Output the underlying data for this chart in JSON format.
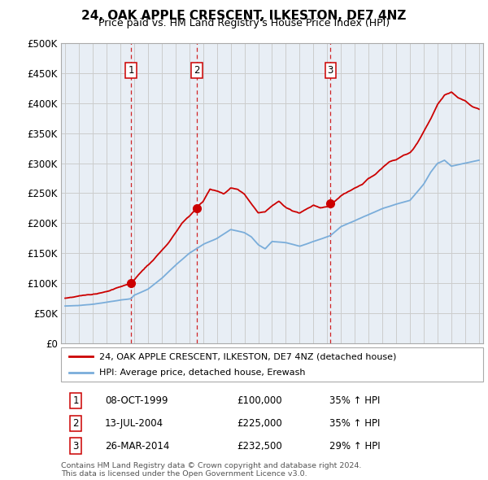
{
  "title": "24, OAK APPLE CRESCENT, ILKESTON, DE7 4NZ",
  "subtitle": "Price paid vs. HM Land Registry's House Price Index (HPI)",
  "ylabel_ticks": [
    "£0",
    "£50K",
    "£100K",
    "£150K",
    "£200K",
    "£250K",
    "£300K",
    "£350K",
    "£400K",
    "£450K",
    "£500K"
  ],
  "ytick_values": [
    0,
    50000,
    100000,
    150000,
    200000,
    250000,
    300000,
    350000,
    400000,
    450000,
    500000
  ],
  "xlim": [
    1994.7,
    2025.3
  ],
  "ylim": [
    0,
    500000
  ],
  "sale_points": [
    {
      "date": 1999.77,
      "price": 100000,
      "label": "1"
    },
    {
      "date": 2004.54,
      "price": 225000,
      "label": "2"
    },
    {
      "date": 2014.23,
      "price": 232500,
      "label": "3"
    }
  ],
  "vline_dates": [
    1999.77,
    2004.54,
    2014.23
  ],
  "legend_line1": "24, OAK APPLE CRESCENT, ILKESTON, DE7 4NZ (detached house)",
  "legend_line2": "HPI: Average price, detached house, Erewash",
  "table_data": [
    {
      "num": "1",
      "date": "08-OCT-1999",
      "price": "£100,000",
      "change": "35% ↑ HPI"
    },
    {
      "num": "2",
      "date": "13-JUL-2004",
      "price": "£225,000",
      "change": "35% ↑ HPI"
    },
    {
      "num": "3",
      "date": "26-MAR-2014",
      "price": "£232,500",
      "change": "29% ↑ HPI"
    }
  ],
  "footer": "Contains HM Land Registry data © Crown copyright and database right 2024.\nThis data is licensed under the Open Government Licence v3.0.",
  "hpi_color": "#7aadda",
  "price_color": "#cc0000",
  "vline_color": "#cc0000",
  "grid_color": "#cccccc",
  "background_color": "#ffffff",
  "chart_bg": "#e8eef5"
}
